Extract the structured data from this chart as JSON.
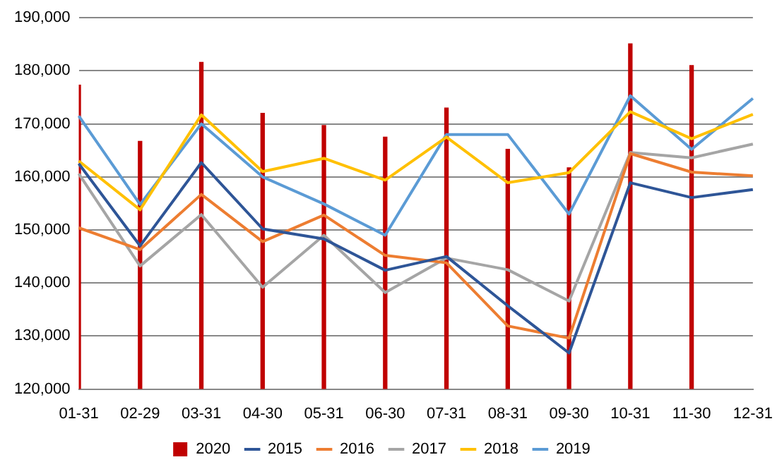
{
  "chart_data": {
    "type": "line",
    "categories": [
      "01-31",
      "02-29",
      "03-31",
      "04-30",
      "05-31",
      "06-30",
      "07-31",
      "08-31",
      "09-30",
      "10-31",
      "11-30",
      "12-31"
    ],
    "series": [
      {
        "name": "2020",
        "type": "bar",
        "color": "#c00000",
        "values": [
          177300,
          166700,
          181600,
          172000,
          169700,
          167500,
          173000,
          165200,
          161700,
          185100,
          181000,
          null
        ]
      },
      {
        "name": "2015",
        "color": "#2e5597",
        "values": [
          162500,
          147000,
          162700,
          150200,
          148300,
          142400,
          145000,
          135700,
          126800,
          158900,
          156100,
          157600
        ]
      },
      {
        "name": "2016",
        "color": "#ed7d31",
        "values": [
          150400,
          146300,
          156700,
          147800,
          152800,
          145200,
          143800,
          131900,
          129600,
          164400,
          160900,
          160200
        ]
      },
      {
        "name": "2017",
        "color": "#a5a5a5",
        "values": [
          160600,
          143200,
          152900,
          139200,
          149000,
          138200,
          144700,
          142500,
          136600,
          164600,
          163600,
          166200
        ]
      },
      {
        "name": "2018",
        "color": "#ffc000",
        "values": [
          163000,
          153800,
          171700,
          161000,
          163500,
          159400,
          167500,
          158900,
          160800,
          172300,
          167200,
          171800
        ]
      },
      {
        "name": "2019",
        "color": "#5b9bd5",
        "values": [
          171500,
          154800,
          170000,
          160000,
          154900,
          149000,
          168000,
          168000,
          153000,
          175300,
          165200,
          174800
        ]
      }
    ],
    "ylim": [
      120000,
      190000
    ],
    "yticks": [
      {
        "value": 120000,
        "label": "120,000"
      },
      {
        "value": 130000,
        "label": "130,000"
      },
      {
        "value": 140000,
        "label": "140,000"
      },
      {
        "value": 150000,
        "label": "150,000"
      },
      {
        "value": 160000,
        "label": "160,000"
      },
      {
        "value": 170000,
        "label": "170,000"
      },
      {
        "value": 180000,
        "label": "180,000"
      },
      {
        "value": 190000,
        "label": "190,000"
      }
    ],
    "grid": "y",
    "legend": "bottom",
    "marker": "none",
    "line_style": "solid"
  }
}
